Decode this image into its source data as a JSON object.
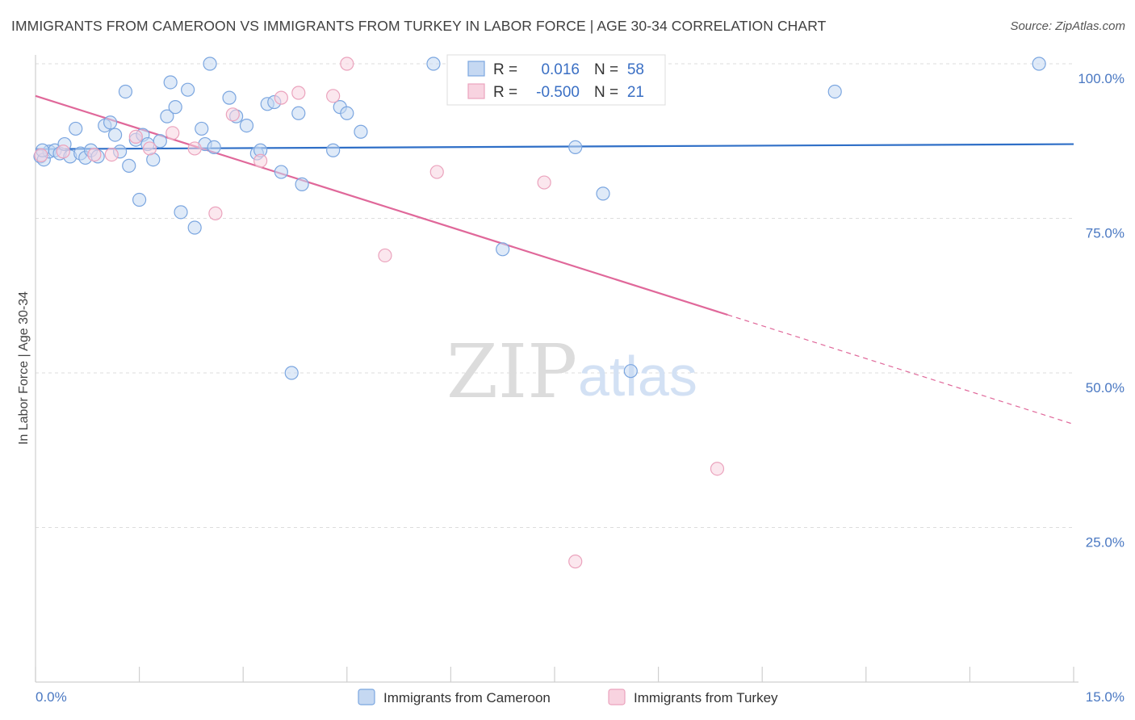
{
  "title": "IMMIGRANTS FROM CAMEROON VS IMMIGRANTS FROM TURKEY IN LABOR FORCE | AGE 30-34 CORRELATION CHART",
  "source": "Source: ZipAtlas.com",
  "watermark": {
    "zip": "ZIP",
    "atlas": "atlas"
  },
  "colors": {
    "cameroon": "#7ba6e0",
    "cameroon_fill": "#c5d8f2",
    "cameroon_line": "#2f6fc7",
    "turkey": "#eba3bd",
    "turkey_fill": "#f8d3e0",
    "turkey_line": "#e0689a",
    "grid": "#dddddd",
    "tick_text": "#4a78c2"
  },
  "stats_box": {
    "rows": [
      {
        "r_label": "R =",
        "r_value": "0.016",
        "n_label": "N =",
        "n_value": "58"
      },
      {
        "r_label": "R =",
        "r_value": "-0.500",
        "n_label": "N =",
        "n_value": "21"
      }
    ]
  },
  "chart_data": {
    "type": "scatter",
    "title": "IMMIGRANTS FROM CAMEROON VS IMMIGRANTS FROM TURKEY IN LABOR FORCE | AGE 30-34 CORRELATION CHART",
    "xlabel": "",
    "ylabel": "In Labor Force | Age 30-34",
    "xlim": [
      0,
      15
    ],
    "ylim": [
      0,
      100
    ],
    "x_tick_labels": [
      "0.0%",
      "15.0%"
    ],
    "y_ticks": [
      25,
      50,
      75,
      100
    ],
    "y_tick_labels": [
      "25.0%",
      "50.0%",
      "75.0%",
      "100.0%"
    ],
    "grid": true,
    "legend_position": "bottom",
    "series": [
      {
        "name": "Immigrants from Cameroon",
        "color": "#7ba6e0",
        "trend": {
          "x": [
            0,
            15
          ],
          "y": [
            86.2,
            87.0
          ],
          "dashed_from_x": null
        },
        "points": [
          {
            "x": 0.07,
            "y": 85.0
          },
          {
            "x": 0.12,
            "y": 84.5
          },
          {
            "x": 0.2,
            "y": 85.8
          },
          {
            "x": 0.28,
            "y": 86.0
          },
          {
            "x": 0.35,
            "y": 85.5
          },
          {
            "x": 0.42,
            "y": 87.0
          },
          {
            "x": 0.5,
            "y": 85.0
          },
          {
            "x": 0.58,
            "y": 89.5
          },
          {
            "x": 0.65,
            "y": 85.5
          },
          {
            "x": 0.72,
            "y": 84.8
          },
          {
            "x": 0.8,
            "y": 86.0
          },
          {
            "x": 0.9,
            "y": 85.0
          },
          {
            "x": 1.0,
            "y": 90.0
          },
          {
            "x": 1.08,
            "y": 90.5
          },
          {
            "x": 1.15,
            "y": 88.5
          },
          {
            "x": 1.22,
            "y": 85.8
          },
          {
            "x": 1.3,
            "y": 95.5
          },
          {
            "x": 1.35,
            "y": 83.5
          },
          {
            "x": 1.45,
            "y": 87.7
          },
          {
            "x": 1.5,
            "y": 78.0
          },
          {
            "x": 1.55,
            "y": 88.5
          },
          {
            "x": 1.62,
            "y": 87.0
          },
          {
            "x": 1.7,
            "y": 84.5
          },
          {
            "x": 1.8,
            "y": 87.5
          },
          {
            "x": 1.9,
            "y": 91.5
          },
          {
            "x": 1.95,
            "y": 97.0
          },
          {
            "x": 2.02,
            "y": 93.0
          },
          {
            "x": 2.1,
            "y": 76.0
          },
          {
            "x": 2.2,
            "y": 95.8
          },
          {
            "x": 2.3,
            "y": 73.5
          },
          {
            "x": 2.4,
            "y": 89.5
          },
          {
            "x": 2.45,
            "y": 87.0
          },
          {
            "x": 2.52,
            "y": 100.0
          },
          {
            "x": 2.58,
            "y": 86.5
          },
          {
            "x": 2.8,
            "y": 94.5
          },
          {
            "x": 2.9,
            "y": 91.5
          },
          {
            "x": 3.05,
            "y": 90.0
          },
          {
            "x": 3.2,
            "y": 85.5
          },
          {
            "x": 3.25,
            "y": 86.0
          },
          {
            "x": 3.35,
            "y": 93.5
          },
          {
            "x": 3.45,
            "y": 93.8
          },
          {
            "x": 3.55,
            "y": 82.5
          },
          {
            "x": 3.7,
            "y": 50.0
          },
          {
            "x": 3.8,
            "y": 92.0
          },
          {
            "x": 3.85,
            "y": 80.5
          },
          {
            "x": 4.3,
            "y": 86.0
          },
          {
            "x": 4.4,
            "y": 93.0
          },
          {
            "x": 4.5,
            "y": 92.0
          },
          {
            "x": 4.7,
            "y": 89.0
          },
          {
            "x": 5.75,
            "y": 100.0
          },
          {
            "x": 6.75,
            "y": 70.0
          },
          {
            "x": 7.8,
            "y": 86.5
          },
          {
            "x": 8.2,
            "y": 79.0
          },
          {
            "x": 8.6,
            "y": 50.3
          },
          {
            "x": 8.95,
            "y": 100.0
          },
          {
            "x": 11.55,
            "y": 95.5
          },
          {
            "x": 14.5,
            "y": 100.0
          },
          {
            "x": 0.1,
            "y": 86.0
          }
        ]
      },
      {
        "name": "Immigrants from Turkey",
        "color": "#eba3bd",
        "trend": {
          "x": [
            0,
            15
          ],
          "y": [
            94.8,
            41.7
          ],
          "dashed_from_x": 10.0
        },
        "points": [
          {
            "x": 0.08,
            "y": 85.2
          },
          {
            "x": 0.4,
            "y": 85.8
          },
          {
            "x": 0.85,
            "y": 85.3
          },
          {
            "x": 1.1,
            "y": 85.3
          },
          {
            "x": 1.45,
            "y": 88.2
          },
          {
            "x": 1.65,
            "y": 86.3
          },
          {
            "x": 1.98,
            "y": 88.8
          },
          {
            "x": 2.3,
            "y": 86.3
          },
          {
            "x": 2.6,
            "y": 75.8
          },
          {
            "x": 2.85,
            "y": 91.8
          },
          {
            "x": 3.25,
            "y": 84.3
          },
          {
            "x": 3.55,
            "y": 94.5
          },
          {
            "x": 3.8,
            "y": 95.3
          },
          {
            "x": 4.3,
            "y": 94.8
          },
          {
            "x": 4.5,
            "y": 100.0
          },
          {
            "x": 5.05,
            "y": 69.0
          },
          {
            "x": 5.8,
            "y": 82.5
          },
          {
            "x": 7.35,
            "y": 80.8
          },
          {
            "x": 7.8,
            "y": 19.5
          },
          {
            "x": 8.75,
            "y": 100.2
          },
          {
            "x": 9.85,
            "y": 34.5
          }
        ]
      }
    ]
  }
}
